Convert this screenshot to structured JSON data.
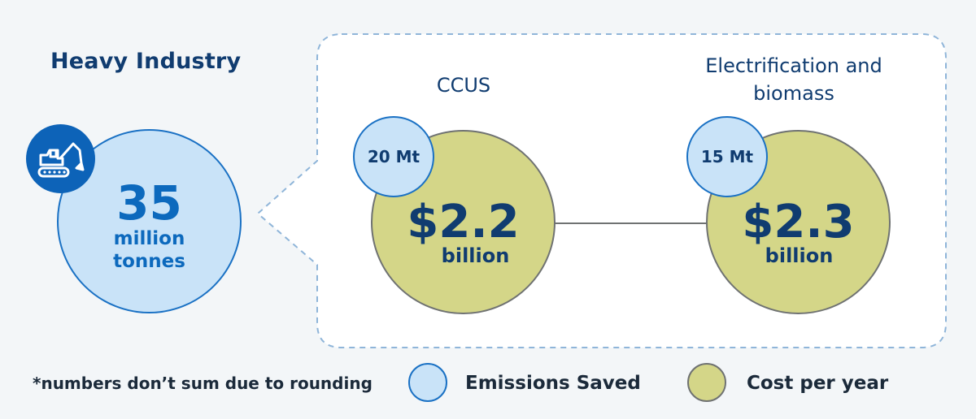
{
  "sector": {
    "title": "Heavy Industry",
    "total_value": "35",
    "total_unit_line1": "million",
    "total_unit_line2": "tonnes",
    "icon": "excavator-icon"
  },
  "options": [
    {
      "label_line1": "CCUS",
      "label_line2": "",
      "emissions": "20 Mt",
      "cost_value": "$2.2",
      "cost_unit": "billion"
    },
    {
      "label_line1": "Electrification and",
      "label_line2": "biomass",
      "emissions": "15 Mt",
      "cost_value": "$2.3",
      "cost_unit": "billion"
    }
  ],
  "footnote": "*numbers don’t sum due to rounding",
  "legend": {
    "emissions_label": "Emissions Saved",
    "cost_label": "Cost per year"
  },
  "colors": {
    "background": "#f3f6f8",
    "emissions_fill": "#c9e3f8",
    "emissions_stroke": "#1a71c4",
    "cost_fill": "#d4d688",
    "cost_stroke": "#6f7272",
    "navy": "#103c70",
    "accent_blue": "#0d63b8"
  }
}
